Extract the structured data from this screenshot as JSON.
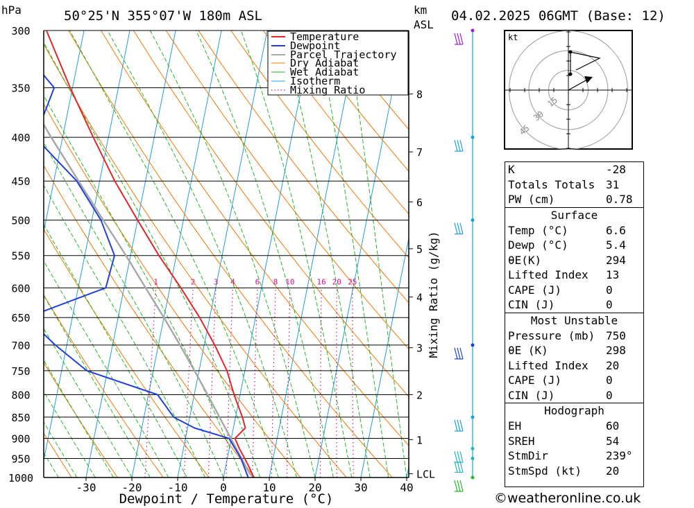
{
  "header": {
    "location": "50°25'N  355°07'W  180m  ASL",
    "datetime": "04.02.2025  06GMT  (Base: 12)",
    "hpa_label": "hPa",
    "km_label": "km",
    "asl_label": "ASL"
  },
  "chart_data": {
    "type": "skew-t",
    "xlabel": "Dewpoint / Temperature (°C)",
    "ylabel_right": "Mixing Ratio (g/kg)",
    "x_ticks": [
      -30,
      -20,
      -10,
      0,
      10,
      20,
      30,
      40
    ],
    "pressure_levels": [
      300,
      350,
      400,
      450,
      500,
      550,
      600,
      650,
      700,
      750,
      800,
      850,
      900,
      950,
      1000
    ],
    "km_ticks": [
      {
        "label": "8",
        "p": 356
      },
      {
        "label": "7",
        "p": 416
      },
      {
        "label": "6",
        "p": 476
      },
      {
        "label": "5",
        "p": 540
      },
      {
        "label": "4",
        "p": 615
      },
      {
        "label": "3",
        "p": 705
      },
      {
        "label": "2",
        "p": 800
      },
      {
        "label": "1",
        "p": 903
      },
      {
        "label": "LCL",
        "p": 990
      }
    ],
    "mixing_ratio_labels": [
      "1",
      "2",
      "3",
      "4",
      "6",
      "8",
      "10",
      "16",
      "20",
      "25"
    ],
    "mixing_ratio_values": [
      1,
      2,
      3,
      4,
      6,
      8,
      10,
      16,
      20,
      25
    ],
    "legend": [
      "Temperature",
      "Dewpoint",
      "Parcel Trajectory",
      "Dry Adiabat",
      "Wet Adiabat",
      "Isotherm",
      "Mixing Ratio"
    ],
    "colors": {
      "temperature": "#e0262b",
      "dewpoint": "#1f3fd8",
      "parcel": "#a8a8a8",
      "dry_adiabat": "#f07800",
      "wet_adiabat": "#22b822",
      "isotherm": "#1e9ee0",
      "mixing_ratio": "#d0108e"
    },
    "temperature": [
      {
        "p": 1000,
        "t": 6.6
      },
      {
        "p": 975,
        "t": 5.3
      },
      {
        "p": 950,
        "t": 3.8
      },
      {
        "p": 925,
        "t": 2.2
      },
      {
        "p": 900,
        "t": 0.8
      },
      {
        "p": 875,
        "t": 2.6
      },
      {
        "p": 850,
        "t": 1.5
      },
      {
        "p": 800,
        "t": -1.3
      },
      {
        "p": 750,
        "t": -3.9
      },
      {
        "p": 700,
        "t": -7.7
      },
      {
        "p": 650,
        "t": -12.2
      },
      {
        "p": 600,
        "t": -17.6
      },
      {
        "p": 550,
        "t": -23.8
      },
      {
        "p": 500,
        "t": -30.0
      },
      {
        "p": 450,
        "t": -36.7
      },
      {
        "p": 400,
        "t": -43.3
      },
      {
        "p": 350,
        "t": -50.5
      },
      {
        "p": 300,
        "t": -58.2
      }
    ],
    "dewpoint": [
      {
        "p": 1000,
        "t": 5.4
      },
      {
        "p": 950,
        "t": 3.0
      },
      {
        "p": 900,
        "t": -0.5
      },
      {
        "p": 875,
        "t": -8.5
      },
      {
        "p": 850,
        "t": -13.5
      },
      {
        "p": 800,
        "t": -18.0
      },
      {
        "p": 750,
        "t": -34.5
      },
      {
        "p": 700,
        "t": -42.5
      },
      {
        "p": 650,
        "t": -50.0
      },
      {
        "p": 600,
        "t": -34.0
      },
      {
        "p": 550,
        "t": -33.5
      },
      {
        "p": 500,
        "t": -38.0
      },
      {
        "p": 450,
        "t": -45.0
      },
      {
        "p": 400,
        "t": -56.0
      },
      {
        "p": 350,
        "t": -54.0
      },
      {
        "p": 300,
        "t": -67.0
      }
    ],
    "parcel": [
      {
        "p": 1000,
        "t": 6.6
      },
      {
        "p": 990,
        "t": 5.6
      },
      {
        "p": 950,
        "t": 3.1
      },
      {
        "p": 900,
        "t": -0.1
      },
      {
        "p": 850,
        "t": -3.5
      },
      {
        "p": 800,
        "t": -7.1
      },
      {
        "p": 750,
        "t": -11.0
      },
      {
        "p": 700,
        "t": -15.3
      },
      {
        "p": 650,
        "t": -20.0
      },
      {
        "p": 600,
        "t": -25.3
      },
      {
        "p": 550,
        "t": -31.0
      },
      {
        "p": 500,
        "t": -37.5
      },
      {
        "p": 450,
        "t": -44.6
      },
      {
        "p": 400,
        "t": -52.5
      },
      {
        "p": 350,
        "t": -61.0
      },
      {
        "p": 300,
        "t": -70.0
      }
    ],
    "wind_barbs": [
      {
        "p": 1000,
        "color": "#22b822"
      },
      {
        "p": 950,
        "color": "#22b8b8"
      },
      {
        "p": 925,
        "color": "#22b8b8"
      },
      {
        "p": 850,
        "color": "#1e9ee0"
      },
      {
        "p": 700,
        "color": "#1f3fd8"
      },
      {
        "p": 500,
        "color": "#1e9ee0"
      },
      {
        "p": 400,
        "color": "#1e9ee0"
      },
      {
        "p": 300,
        "color": "#9b1fd0"
      }
    ]
  },
  "hodograph": {
    "unit": "kt",
    "ring_labels": [
      "15",
      "30",
      "45"
    ]
  },
  "indices": {
    "rows_top": [
      {
        "label": "K",
        "value": "-28"
      },
      {
        "label": "Totals Totals",
        "value": "31"
      },
      {
        "label": "PW (cm)",
        "value": "0.78"
      }
    ],
    "surface_title": "Surface",
    "surface": [
      {
        "label": "Temp (°C)",
        "value": "6.6"
      },
      {
        "label": "Dewp (°C)",
        "value": "5.4"
      },
      {
        "label": "θE(K)",
        "value": "294"
      },
      {
        "label": "Lifted Index",
        "value": "13"
      },
      {
        "label": "CAPE (J)",
        "value": "0"
      },
      {
        "label": "CIN (J)",
        "value": "0"
      }
    ],
    "mu_title": "Most Unstable",
    "mu": [
      {
        "label": "Pressure (mb)",
        "value": "750"
      },
      {
        "label": "θE (K)",
        "value": "298"
      },
      {
        "label": "Lifted Index",
        "value": "20"
      },
      {
        "label": "CAPE (J)",
        "value": "0"
      },
      {
        "label": "CIN (J)",
        "value": "0"
      }
    ],
    "hodo_title": "Hodograph",
    "hodo": [
      {
        "label": "EH",
        "value": "60"
      },
      {
        "label": "SREH",
        "value": "54"
      },
      {
        "label": "StmDir",
        "value": "239°"
      },
      {
        "label": "StmSpd (kt)",
        "value": "20"
      }
    ]
  },
  "footer": "©weatheronline.co.uk"
}
